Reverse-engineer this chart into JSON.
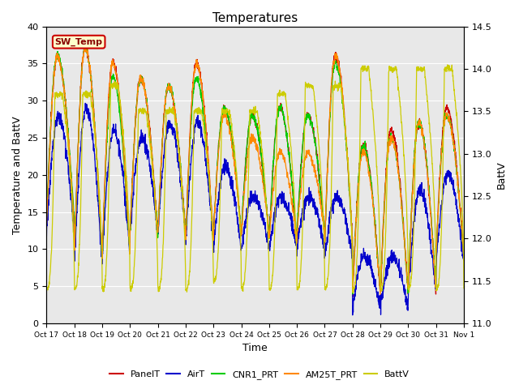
{
  "title": "Temperatures",
  "xlabel": "Time",
  "ylabel_left": "Temperature and BattV",
  "ylabel_right": "BattV",
  "xlim": [
    0,
    15
  ],
  "ylim_left": [
    0,
    40
  ],
  "ylim_right": [
    11.0,
    14.5
  ],
  "xtick_labels": [
    "Oct 17",
    "Oct 18",
    "Oct 19",
    "Oct 20",
    "Oct 21",
    "Oct 22",
    "Oct 23",
    "Oct 24",
    "Oct 25",
    "Oct 26",
    "Oct 27",
    "Oct 28",
    "Oct 29",
    "Oct 30",
    "Oct 31",
    "Nov 1"
  ],
  "ytick_left": [
    0,
    5,
    10,
    15,
    20,
    25,
    30,
    35,
    40
  ],
  "ytick_right": [
    11.0,
    11.5,
    12.0,
    12.5,
    13.0,
    13.5,
    14.0,
    14.5
  ],
  "legend_entries": [
    "PanelT",
    "AirT",
    "CNR1_PRT",
    "AM25T_PRT",
    "BattV"
  ],
  "legend_colors": [
    "#cc0000",
    "#0000cc",
    "#00cc00",
    "#ff8800",
    "#cccc00"
  ],
  "sw_temp_label": "SW_Temp",
  "sw_temp_text_color": "#880000",
  "sw_temp_bg": "#ffffcc",
  "sw_temp_edge": "#cc0000",
  "background_color": "#e8e8e8",
  "grid_color": "#ffffff",
  "title_fontsize": 11,
  "label_fontsize": 9,
  "tick_fontsize": 8,
  "legend_fontsize": 8
}
